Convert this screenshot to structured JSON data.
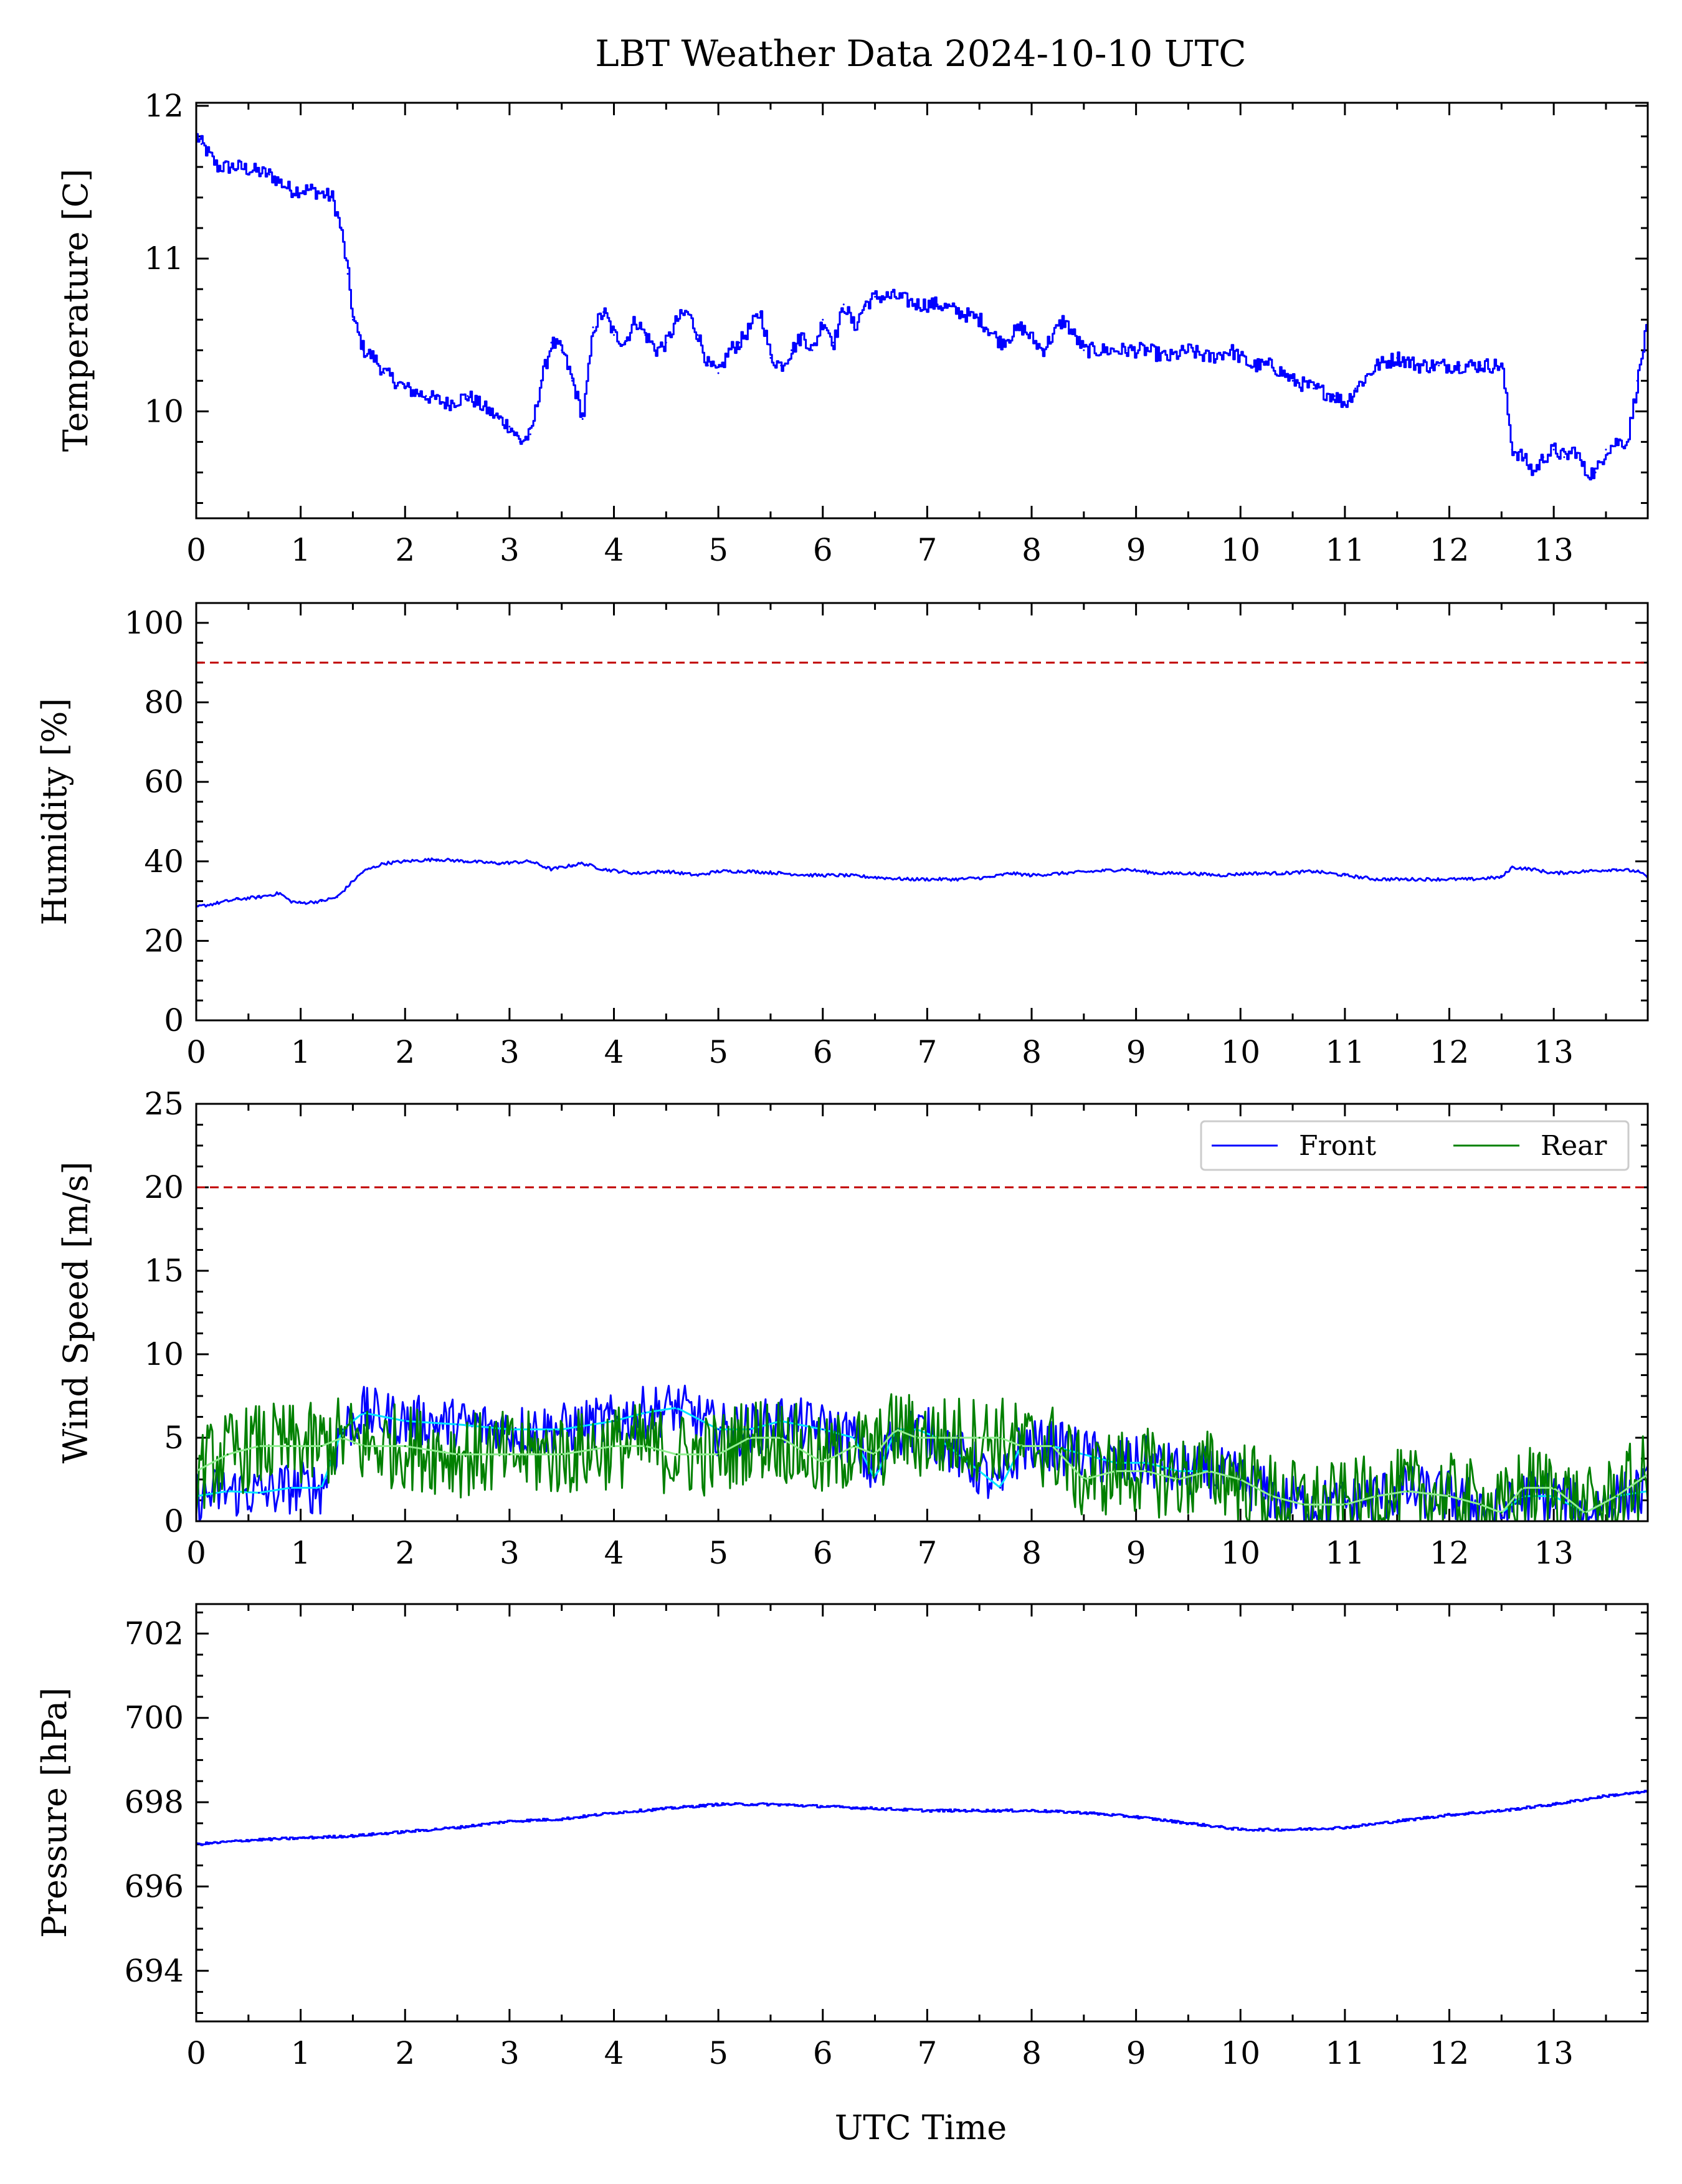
{
  "chart_data": [
    {
      "id": "temperature",
      "type": "line",
      "title": "LBT Weather Data 2024-10-10 UTC",
      "xlabel": "",
      "ylabel": "Temperature [C]",
      "xlim": [
        0,
        13.9
      ],
      "ylim": [
        9.3,
        12.02
      ],
      "x_ticks": [
        0,
        1,
        2,
        3,
        4,
        5,
        6,
        7,
        8,
        9,
        10,
        11,
        12,
        13
      ],
      "y_ticks": [
        10,
        11,
        12
      ],
      "grid": false,
      "series": [
        {
          "color": "#0000ff",
          "step": true,
          "noise": 0.05,
          "x": [
            0,
            0.05,
            0.1,
            0.2,
            0.4,
            0.7,
            0.9,
            1.1,
            1.3,
            1.38,
            1.45,
            1.5,
            1.6,
            1.7,
            1.8,
            2.0,
            2.2,
            2.4,
            2.6,
            2.8,
            2.9,
            3.0,
            3.1,
            3.2,
            3.3,
            3.4,
            3.5,
            3.6,
            3.7,
            3.8,
            3.9,
            4.0,
            4.1,
            4.2,
            4.3,
            4.4,
            4.5,
            4.6,
            4.7,
            4.8,
            4.9,
            5.0,
            5.1,
            5.2,
            5.3,
            5.4,
            5.5,
            5.6,
            5.7,
            5.8,
            5.9,
            6.0,
            6.1,
            6.2,
            6.3,
            6.4,
            6.5,
            6.7,
            6.9,
            7.1,
            7.3,
            7.5,
            7.7,
            7.9,
            8.1,
            8.3,
            8.5,
            8.7,
            8.9,
            9.1,
            9.3,
            9.5,
            9.7,
            9.9,
            10.1,
            10.3,
            10.5,
            10.7,
            10.9,
            11.0,
            11.1,
            11.3,
            11.5,
            11.7,
            11.9,
            12.1,
            12.3,
            12.5,
            12.6,
            12.7,
            12.8,
            12.9,
            13.0,
            13.1,
            13.2,
            13.3,
            13.4,
            13.5,
            13.6,
            13.7,
            13.8,
            13.9
          ],
          "y": [
            11.8,
            11.75,
            11.7,
            11.6,
            11.6,
            11.55,
            11.45,
            11.45,
            11.4,
            11.2,
            10.9,
            10.6,
            10.4,
            10.35,
            10.25,
            10.15,
            10.1,
            10.05,
            10.1,
            10.0,
            9.95,
            9.9,
            9.8,
            9.85,
            10.2,
            10.45,
            10.4,
            10.2,
            9.95,
            10.55,
            10.65,
            10.5,
            10.45,
            10.6,
            10.5,
            10.4,
            10.45,
            10.6,
            10.65,
            10.5,
            10.3,
            10.25,
            10.4,
            10.45,
            10.55,
            10.65,
            10.35,
            10.3,
            10.4,
            10.5,
            10.4,
            10.6,
            10.45,
            10.7,
            10.55,
            10.7,
            10.75,
            10.75,
            10.7,
            10.7,
            10.65,
            10.6,
            10.45,
            10.55,
            10.4,
            10.6,
            10.4,
            10.4,
            10.4,
            10.4,
            10.35,
            10.4,
            10.35,
            10.4,
            10.3,
            10.3,
            10.2,
            10.15,
            10.1,
            10.05,
            10.15,
            10.3,
            10.35,
            10.3,
            10.3,
            10.3,
            10.3,
            10.3,
            9.75,
            9.7,
            9.6,
            9.7,
            9.75,
            9.7,
            9.75,
            9.6,
            9.6,
            9.75,
            9.8,
            9.8,
            10.2,
            10.6
          ]
        }
      ]
    },
    {
      "id": "humidity",
      "type": "line",
      "xlabel": "",
      "ylabel": "Humidity [%]",
      "xlim": [
        0,
        13.9
      ],
      "ylim": [
        0,
        105
      ],
      "x_ticks": [
        0,
        1,
        2,
        3,
        4,
        5,
        6,
        7,
        8,
        9,
        10,
        11,
        12,
        13
      ],
      "y_ticks": [
        0,
        20,
        40,
        60,
        80,
        100
      ],
      "grid": false,
      "threshold": {
        "value": 90,
        "color": "#c00000",
        "style": "dashed"
      },
      "series": [
        {
          "color": "#0000ff",
          "noise": 0.4,
          "x": [
            0,
            0.2,
            0.4,
            0.6,
            0.8,
            0.9,
            1.0,
            1.2,
            1.35,
            1.5,
            1.6,
            1.8,
            2.0,
            2.3,
            2.6,
            2.9,
            3.2,
            3.4,
            3.6,
            3.7,
            3.9,
            4.2,
            4.5,
            4.8,
            5.0,
            5.3,
            5.6,
            5.9,
            6.2,
            6.5,
            6.8,
            7.0,
            7.3,
            7.6,
            7.8,
            8.0,
            8.3,
            8.6,
            8.9,
            9.2,
            9.5,
            9.8,
            10.1,
            10.4,
            10.7,
            11.0,
            11.3,
            11.6,
            11.9,
            12.2,
            12.5,
            12.6,
            12.8,
            13.0,
            13.3,
            13.6,
            13.8,
            13.9
          ],
          "y": [
            28.5,
            29.5,
            30.5,
            31,
            32,
            30,
            29.5,
            30,
            31,
            35,
            37.5,
            39.5,
            40,
            40.5,
            40,
            39.5,
            40,
            38,
            39,
            39.5,
            38,
            37,
            37.5,
            36.5,
            37.5,
            37.5,
            37,
            36.5,
            36.5,
            36,
            35.5,
            35.5,
            35.5,
            36,
            37,
            36.5,
            37,
            37.5,
            38,
            37,
            37,
            36.5,
            37,
            37,
            37.5,
            36.5,
            35.5,
            35.5,
            35.5,
            35.5,
            36,
            38.5,
            38,
            37,
            37.5,
            38,
            37.5,
            36
          ]
        }
      ]
    },
    {
      "id": "wind",
      "type": "line",
      "xlabel": "",
      "ylabel": "Wind Speed [m/s]",
      "xlim": [
        0,
        13.9
      ],
      "ylim": [
        0,
        25
      ],
      "x_ticks": [
        0,
        1,
        2,
        3,
        4,
        5,
        6,
        7,
        8,
        9,
        10,
        11,
        12,
        13
      ],
      "y_ticks": [
        0,
        5,
        10,
        15,
        20,
        25
      ],
      "grid": false,
      "legend": {
        "position": "top-right",
        "entries": [
          "Front",
          "Rear"
        ]
      },
      "threshold": {
        "value": 20,
        "color": "#c00000",
        "style": "dashed"
      },
      "series": [
        {
          "name": "Front",
          "color": "#0000ff",
          "noise": 1.6,
          "x": [
            0,
            0.3,
            0.6,
            0.9,
            1.2,
            1.4,
            1.6,
            2.0,
            2.5,
            3.0,
            3.5,
            4.0,
            4.3,
            4.6,
            5.0,
            5.3,
            5.6,
            6.0,
            6.3,
            6.5,
            6.7,
            6.9,
            7.1,
            7.3,
            7.5,
            7.7,
            7.9,
            8.2,
            8.5,
            8.8,
            9.1,
            9.4,
            9.7,
            10.0,
            10.3,
            10.6,
            11.0,
            11.3,
            11.6,
            12.0,
            12.3,
            12.5,
            12.7,
            13.0,
            13.3,
            13.6,
            13.9
          ],
          "y": [
            1.5,
            1.8,
            1.7,
            2.0,
            2.0,
            5.5,
            6.5,
            6.0,
            5.8,
            5.5,
            5.5,
            6.0,
            6.5,
            6.8,
            5.5,
            5.5,
            6.0,
            5.5,
            5.0,
            2.5,
            5.5,
            5.5,
            5.0,
            4.0,
            3.0,
            2.0,
            4.5,
            4.5,
            4.0,
            3.5,
            3.5,
            3.0,
            3.0,
            2.5,
            1.5,
            1.0,
            1.0,
            1.5,
            1.8,
            1.5,
            1.0,
            0.5,
            1.5,
            1.5,
            0.5,
            1.5,
            1.8
          ]
        },
        {
          "name": "Rear",
          "color": "#008000",
          "noise": 2.6,
          "x": [
            0,
            0.3,
            0.6,
            0.9,
            1.2,
            1.4,
            1.6,
            2.0,
            2.5,
            3.0,
            3.5,
            4.0,
            4.3,
            4.6,
            5.0,
            5.3,
            5.6,
            6.0,
            6.3,
            6.5,
            6.7,
            6.9,
            7.1,
            7.3,
            7.5,
            7.7,
            7.9,
            8.2,
            8.5,
            8.8,
            9.1,
            9.4,
            9.7,
            10.0,
            10.3,
            10.6,
            11.0,
            11.3,
            11.6,
            12.0,
            12.3,
            12.5,
            12.7,
            13.0,
            13.3,
            13.6,
            13.9
          ],
          "y": [
            3.0,
            4.0,
            4.5,
            4.5,
            4.5,
            5.0,
            4.5,
            4.5,
            4.0,
            4.0,
            4.0,
            4.5,
            4.5,
            4.0,
            4.0,
            5.0,
            5.0,
            3.5,
            4.5,
            4.0,
            5.5,
            5.0,
            5.0,
            5.0,
            5.0,
            5.0,
            4.5,
            4.5,
            2.5,
            3.0,
            3.0,
            2.5,
            3.0,
            2.5,
            1.5,
            1.0,
            1.0,
            1.5,
            1.8,
            1.5,
            1.0,
            0.5,
            2.0,
            2.0,
            0.5,
            1.5,
            2.8
          ]
        }
      ]
    },
    {
      "id": "pressure",
      "type": "line",
      "xlabel": "UTC Time",
      "ylabel": "Pressure [hPa]",
      "xlim": [
        0,
        13.9
      ],
      "ylim": [
        692.8,
        702.7
      ],
      "x_ticks": [
        0,
        1,
        2,
        3,
        4,
        5,
        6,
        7,
        8,
        9,
        10,
        11,
        12,
        13
      ],
      "y_ticks": [
        694,
        696,
        698,
        700,
        702
      ],
      "grid": false,
      "series": [
        {
          "color": "#0000ff",
          "step": true,
          "noise": 0.03,
          "x": [
            0,
            0.5,
            1.0,
            1.5,
            2.0,
            2.5,
            3.0,
            3.5,
            4.0,
            4.5,
            5.0,
            5.5,
            6.0,
            6.5,
            7.0,
            7.5,
            8.0,
            8.5,
            9.0,
            9.5,
            10.0,
            10.5,
            11.0,
            11.5,
            12.0,
            12.5,
            13.0,
            13.5,
            13.9
          ],
          "y": [
            697.0,
            697.1,
            697.15,
            697.2,
            697.3,
            697.4,
            697.55,
            697.6,
            697.75,
            697.85,
            697.95,
            697.95,
            697.9,
            697.85,
            697.8,
            697.8,
            697.8,
            697.75,
            697.65,
            697.5,
            697.35,
            697.35,
            697.4,
            697.55,
            697.7,
            697.8,
            697.95,
            698.15,
            698.25
          ]
        }
      ]
    }
  ]
}
